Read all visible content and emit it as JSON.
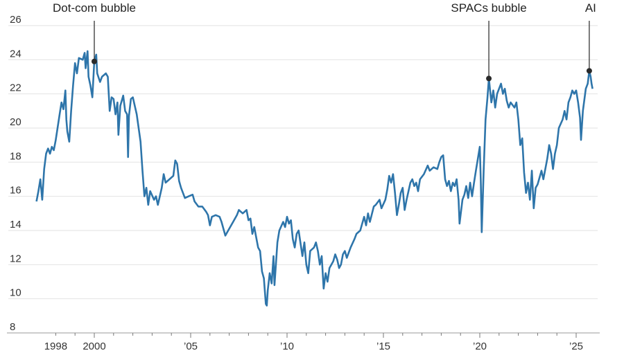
{
  "chart_data": {
    "type": "line",
    "title": "",
    "xlabel": "",
    "ylabel": "",
    "ylim": [
      8,
      26
    ],
    "xlim": [
      1996.9,
      2026.2
    ],
    "grid": true,
    "colors": {
      "line": "#2e75aa",
      "grid": "#e2e2e2",
      "axis": "#999999",
      "annotation": "#222222"
    },
    "y_ticks": [
      {
        "value": 26,
        "label": "26"
      },
      {
        "value": 24,
        "label": "24"
      },
      {
        "value": 22,
        "label": "22"
      },
      {
        "value": 20,
        "label": "20"
      },
      {
        "value": 18,
        "label": "18"
      },
      {
        "value": 16,
        "label": "16"
      },
      {
        "value": 14,
        "label": "14"
      },
      {
        "value": 12,
        "label": "12"
      },
      {
        "value": 10,
        "label": "10"
      },
      {
        "value": 8,
        "label": "8"
      }
    ],
    "x_ticks": [
      {
        "value": 1998,
        "label": "1998"
      },
      {
        "value": 2000,
        "label": "2000"
      },
      {
        "value": 2005,
        "label": "’05"
      },
      {
        "value": 2010,
        "label": "’10"
      },
      {
        "value": 2015,
        "label": "’15"
      },
      {
        "value": 2020,
        "label": "’20"
      },
      {
        "value": 2025,
        "label": "’25"
      }
    ],
    "minor_tick_years": [
      1998,
      1999,
      2000,
      2001,
      2002,
      2003,
      2004,
      2005,
      2006,
      2007,
      2008,
      2009,
      2010,
      2011,
      2012,
      2013,
      2014,
      2015,
      2016,
      2017,
      2018,
      2019,
      2020,
      2021,
      2022,
      2023,
      2024,
      2025
    ],
    "annotations": [
      {
        "label": "Dot-com bubble",
        "x": 2000.0,
        "y": 23.9
      },
      {
        "label": "SPACs bubble",
        "x": 2020.47,
        "y": 22.9
      },
      {
        "label": "AI",
        "x": 2025.68,
        "y": 23.35
      }
    ],
    "series": [
      {
        "name": "value",
        "x": [
          1997.0,
          1997.1,
          1997.2,
          1997.3,
          1997.4,
          1997.5,
          1997.6,
          1997.7,
          1997.8,
          1997.9,
          1998.0,
          1998.2,
          1998.3,
          1998.4,
          1998.5,
          1998.55,
          1998.6,
          1998.7,
          1998.8,
          1998.9,
          1999.0,
          1999.1,
          1999.2,
          1999.4,
          1999.5,
          1999.55,
          1999.65,
          1999.7,
          1999.8,
          1999.9,
          2000.0,
          2000.1,
          2000.15,
          2000.3,
          2000.4,
          2000.6,
          2000.7,
          2000.8,
          2000.9,
          2001.0,
          2001.1,
          2001.2,
          2001.25,
          2001.35,
          2001.5,
          2001.6,
          2001.7,
          2001.75,
          2001.8,
          2001.9,
          2002.0,
          2002.1,
          2002.2,
          2002.4,
          2002.5,
          2002.6,
          2002.7,
          2002.8,
          2002.9,
          2003.1,
          2003.2,
          2003.3,
          2003.5,
          2003.6,
          2003.7,
          2003.9,
          2004.1,
          2004.2,
          2004.3,
          2004.4,
          2004.5,
          2004.7,
          2004.9,
          2005.1,
          2005.2,
          2005.4,
          2005.6,
          2005.8,
          2005.9,
          2006.0,
          2006.1,
          2006.3,
          2006.5,
          2006.6,
          2006.8,
          2006.9,
          2007.2,
          2007.4,
          2007.5,
          2007.7,
          2007.9,
          2008.0,
          2008.1,
          2008.2,
          2008.3,
          2008.5,
          2008.6,
          2008.7,
          2008.8,
          2008.9,
          2008.95,
          2009.0,
          2009.1,
          2009.2,
          2009.3,
          2009.35,
          2009.5,
          2009.6,
          2009.8,
          2009.9,
          2010.0,
          2010.1,
          2010.2,
          2010.3,
          2010.4,
          2010.5,
          2010.6,
          2010.8,
          2010.9,
          2011.0,
          2011.1,
          2011.2,
          2011.4,
          2011.5,
          2011.6,
          2011.7,
          2011.8,
          2011.9,
          2012.0,
          2012.1,
          2012.2,
          2012.4,
          2012.5,
          2012.6,
          2012.7,
          2012.8,
          2012.9,
          2013.0,
          2013.1,
          2013.3,
          2013.5,
          2013.6,
          2013.8,
          2014.0,
          2014.1,
          2014.2,
          2014.3,
          2014.5,
          2014.6,
          2014.8,
          2014.9,
          2015.1,
          2015.2,
          2015.3,
          2015.4,
          2015.5,
          2015.6,
          2015.7,
          2015.8,
          2015.9,
          2016.0,
          2016.1,
          2016.2,
          2016.4,
          2016.5,
          2016.6,
          2016.7,
          2016.8,
          2016.9,
          2017.1,
          2017.3,
          2017.4,
          2017.6,
          2017.8,
          2017.9,
          2018.0,
          2018.1,
          2018.2,
          2018.3,
          2018.4,
          2018.5,
          2018.6,
          2018.7,
          2018.8,
          2018.9,
          2018.95,
          2019.1,
          2019.2,
          2019.3,
          2019.4,
          2019.5,
          2019.6,
          2019.7,
          2019.8,
          2019.9,
          2020.0,
          2020.05,
          2020.1,
          2020.2,
          2020.3,
          2020.4,
          2020.47,
          2020.6,
          2020.7,
          2020.8,
          2020.9,
          2021.0,
          2021.1,
          2021.2,
          2021.3,
          2021.4,
          2021.5,
          2021.6,
          2021.8,
          2021.9,
          2022.0,
          2022.1,
          2022.2,
          2022.3,
          2022.4,
          2022.5,
          2022.6,
          2022.7,
          2022.8,
          2022.9,
          2023.0,
          2023.2,
          2023.3,
          2023.4,
          2023.5,
          2023.6,
          2023.7,
          2023.8,
          2023.9,
          2024.0,
          2024.1,
          2024.3,
          2024.4,
          2024.5,
          2024.6,
          2024.7,
          2024.8,
          2024.9,
          2025.0,
          2025.1,
          2025.2,
          2025.25,
          2025.35,
          2025.5,
          2025.6,
          2025.68,
          2025.75,
          2025.8,
          2025.85
        ],
        "values": [
          15.7,
          16.3,
          17.0,
          15.8,
          17.6,
          18.5,
          18.8,
          18.5,
          18.9,
          18.7,
          19.3,
          20.8,
          21.5,
          21.1,
          22.2,
          20.5,
          19.8,
          19.2,
          21.0,
          22.5,
          23.8,
          23.2,
          24.1,
          24.0,
          24.4,
          23.5,
          24.5,
          23.0,
          22.5,
          21.8,
          23.9,
          24.3,
          23.2,
          22.7,
          23.0,
          23.2,
          23.0,
          21.0,
          21.8,
          21.7,
          20.8,
          21.5,
          19.6,
          21.3,
          21.9,
          21.0,
          20.8,
          18.3,
          20.7,
          21.7,
          21.8,
          21.3,
          20.8,
          19.2,
          17.5,
          16.0,
          16.5,
          15.5,
          16.3,
          15.8,
          16.0,
          15.5,
          16.5,
          17.3,
          16.8,
          17.0,
          17.2,
          18.1,
          17.9,
          16.9,
          16.5,
          15.9,
          16.0,
          16.1,
          15.7,
          15.4,
          15.4,
          15.1,
          14.9,
          14.3,
          14.8,
          14.9,
          14.8,
          14.5,
          13.7,
          13.9,
          14.5,
          14.9,
          15.2,
          15.0,
          15.2,
          14.6,
          14.7,
          13.8,
          14.2,
          13.0,
          12.8,
          11.6,
          11.2,
          9.7,
          9.6,
          10.5,
          11.5,
          10.9,
          12.5,
          10.8,
          13.3,
          14.0,
          14.5,
          14.2,
          14.8,
          14.4,
          14.6,
          13.5,
          13.0,
          13.8,
          14.0,
          12.5,
          13.3,
          12.0,
          11.5,
          12.8,
          13.0,
          13.3,
          12.8,
          12.0,
          12.5,
          10.6,
          11.5,
          11.0,
          11.8,
          12.2,
          12.6,
          12.3,
          11.8,
          12.0,
          12.6,
          12.8,
          12.4,
          13.0,
          13.5,
          13.8,
          14.0,
          14.8,
          14.3,
          15.0,
          14.5,
          15.4,
          15.5,
          15.8,
          15.3,
          15.8,
          16.4,
          17.2,
          16.8,
          17.3,
          16.2,
          14.9,
          15.5,
          16.2,
          16.5,
          15.2,
          15.8,
          16.8,
          17.0,
          16.6,
          16.8,
          16.3,
          17.0,
          17.3,
          17.8,
          17.5,
          17.7,
          17.6,
          18.0,
          18.3,
          18.4,
          17.0,
          16.6,
          16.9,
          16.3,
          16.8,
          16.6,
          17.0,
          15.8,
          14.4,
          15.8,
          16.1,
          16.6,
          15.9,
          16.8,
          16.0,
          16.8,
          17.5,
          18.2,
          18.9,
          17.0,
          13.9,
          17.5,
          20.5,
          21.8,
          22.9,
          21.5,
          22.2,
          21.2,
          22.0,
          22.3,
          22.6,
          22.0,
          22.3,
          21.6,
          21.2,
          21.5,
          21.2,
          21.5,
          20.5,
          19.0,
          19.4,
          17.4,
          16.2,
          16.8,
          15.8,
          17.5,
          15.3,
          16.5,
          16.7,
          17.5,
          17.0,
          17.6,
          18.2,
          19.0,
          18.5,
          17.6,
          18.5,
          19.0,
          20.0,
          20.5,
          21.0,
          20.5,
          21.5,
          21.8,
          22.2,
          22.0,
          22.2,
          21.5,
          20.6,
          19.3,
          21.0,
          22.3,
          22.6,
          23.35,
          23.0,
          22.6,
          22.3
        ]
      }
    ]
  }
}
